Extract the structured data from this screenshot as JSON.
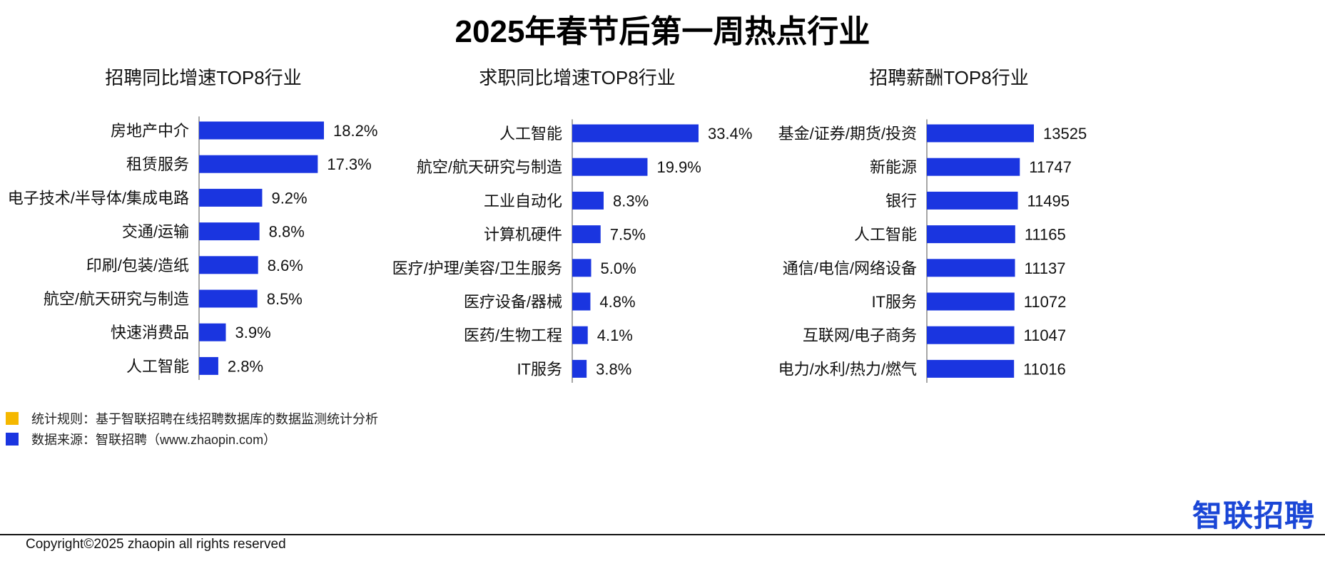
{
  "title": "2025年春节后第一周热点行业",
  "chart_data": [
    {
      "type": "bar",
      "orientation": "horizontal",
      "title": "招聘同比增速TOP8行业",
      "categories": [
        "房地产中介",
        "租赁服务",
        "电子技术/半导体/集成电路",
        "交通/运输",
        "印刷/包装/造纸",
        "航空/航天研究与制造",
        "快速消费品",
        "人工智能"
      ],
      "values": [
        18.2,
        17.3,
        9.2,
        8.8,
        8.6,
        8.5,
        3.9,
        2.8
      ],
      "labels": [
        "18.2%",
        "17.3%",
        "9.2%",
        "8.8%",
        "8.6%",
        "8.5%",
        "3.9%",
        "2.8%"
      ],
      "xlim": [
        0,
        18.2
      ]
    },
    {
      "type": "bar",
      "orientation": "horizontal",
      "title": "求职同比增速TOP8行业",
      "categories": [
        "人工智能",
        "航空/航天研究与制造",
        "工业自动化",
        "计算机硬件",
        "医疗/护理/美容/卫生服务",
        "医疗设备/器械",
        "医药/生物工程",
        "IT服务"
      ],
      "values": [
        33.4,
        19.9,
        8.3,
        7.5,
        5.0,
        4.8,
        4.1,
        3.8
      ],
      "labels": [
        "33.4%",
        "19.9%",
        "8.3%",
        "7.5%",
        "5.0%",
        "4.8%",
        "4.1%",
        "3.8%"
      ],
      "xlim": [
        0,
        33.4
      ]
    },
    {
      "type": "bar",
      "orientation": "horizontal",
      "title": "招聘薪酬TOP8行业",
      "categories": [
        "基金/证券/期货/投资",
        "新能源",
        "银行",
        "人工智能",
        "通信/电信/网络设备",
        "IT服务",
        "互联网/电子商务",
        "电力/水利/热力/燃气"
      ],
      "values": [
        13525,
        11747,
        11495,
        11165,
        11137,
        11072,
        11047,
        11016
      ],
      "labels": [
        "13525",
        "11747",
        "11495",
        "11165",
        "11137",
        "11072",
        "11047",
        "11016"
      ],
      "xlim": [
        0,
        13525
      ]
    }
  ],
  "notes": [
    {
      "text": "统计规则：基于智联招聘在线招聘数据库的数据监测统计分析",
      "color": "#f5b800"
    },
    {
      "text": "数据来源：智联招聘（www.zhaopin.com）",
      "color": "#1a35e0"
    }
  ],
  "logo": "智联招聘",
  "copyright": "Copyright©2025 zhaopin all rights reserved",
  "colors": {
    "bar": "#1a35e0",
    "axis": "#888888",
    "text": "#111111"
  }
}
